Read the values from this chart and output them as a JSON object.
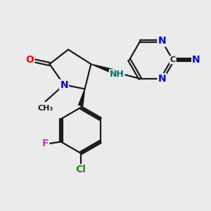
{
  "bg_color": "#ebebeb",
  "bond_color": "#1a1a1a",
  "bond_width": 1.6,
  "atom_colors": {
    "O": "#ff0000",
    "N": "#0000cd",
    "N_nh": "#007070",
    "F": "#c040c0",
    "Cl": "#1e8b1e",
    "C": "#1a1a1a"
  },
  "font_size": 10,
  "font_size_label": 9,
  "font_size_small": 8
}
